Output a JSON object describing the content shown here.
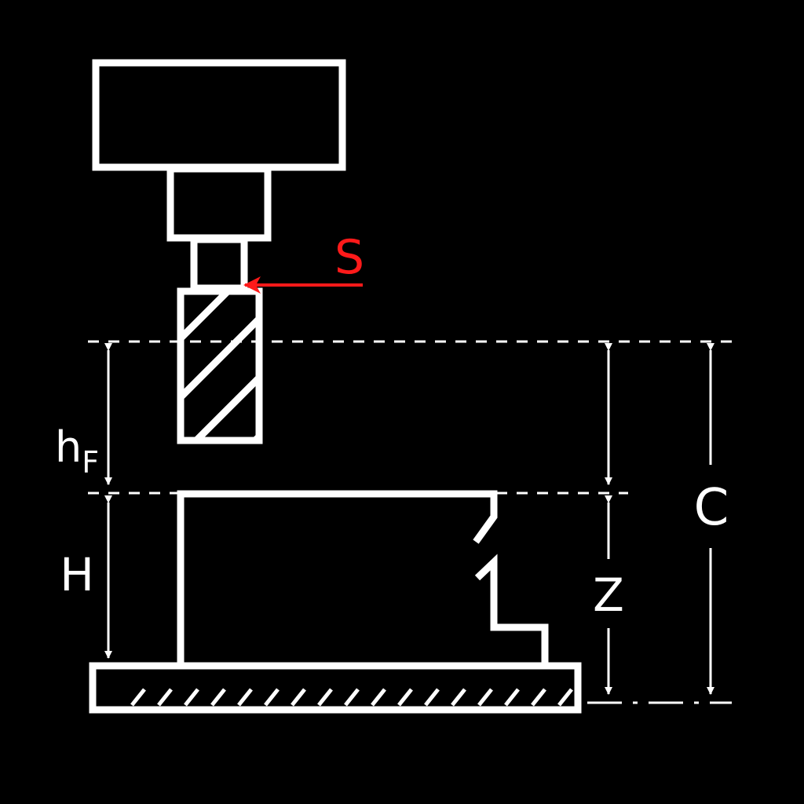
{
  "labels": {
    "spindle_reference": "S",
    "h_main": "h",
    "h_sub": "F",
    "height": "H",
    "z": "Z",
    "c": "C"
  },
  "colors": {
    "background": "#000000",
    "stroke": "#ffffff",
    "highlight": "#ff0000"
  }
}
